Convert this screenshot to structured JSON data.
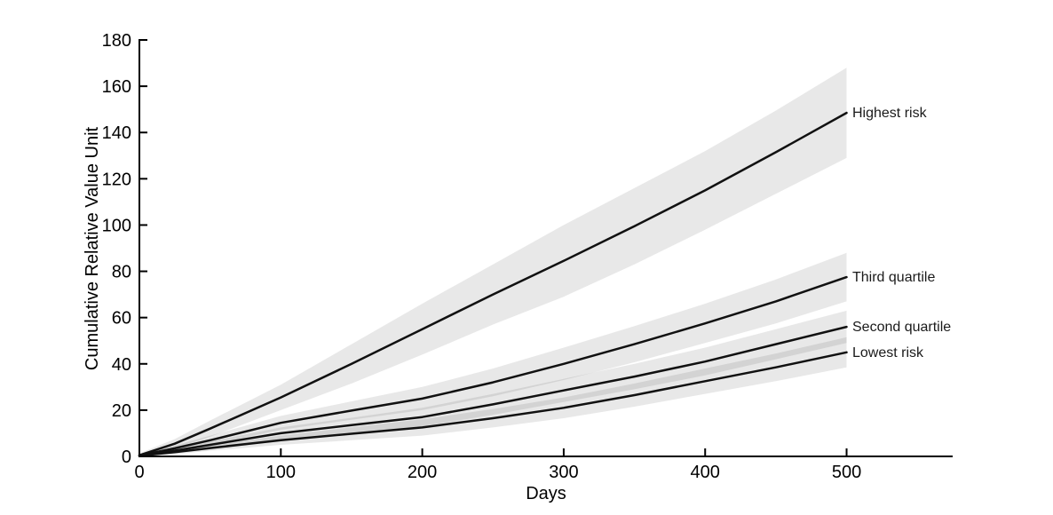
{
  "figure": {
    "background": "#ffffff",
    "axis_color": "#000000",
    "text_color": "#000000"
  },
  "chart_data": {
    "type": "line",
    "title": "",
    "xlabel": "Days",
    "ylabel": "Cumulative Relative Value Unit",
    "xlim": [
      0,
      575
    ],
    "ylim": [
      0,
      180
    ],
    "xticks": [
      0,
      100,
      200,
      300,
      400,
      500
    ],
    "yticks": [
      0,
      20,
      40,
      60,
      80,
      100,
      120,
      140,
      160,
      180
    ],
    "grid": false,
    "legend_position": "end-of-line-annotations",
    "line_color": "#111111",
    "band_color": "rgba(0,0,0,0.09)",
    "x": [
      0,
      25,
      50,
      100,
      150,
      200,
      250,
      300,
      350,
      400,
      450,
      500
    ],
    "series": [
      {
        "name": "highest-risk",
        "label": "Highest risk",
        "label_y": 148.5,
        "mean": [
          0.5,
          5.5,
          12,
          25.5,
          40,
          55,
          70,
          84.5,
          99.5,
          115,
          131.5,
          148.5
        ],
        "upper": [
          1.3,
          7.5,
          15.5,
          31,
          48.5,
          66,
          83,
          100,
          116,
          132,
          149.5,
          168
        ],
        "lower": [
          0,
          3.5,
          8.5,
          20,
          31.5,
          44,
          57,
          69,
          83,
          98,
          113.5,
          129
        ]
      },
      {
        "name": "third-quartile",
        "label": "Third quartile",
        "label_y": 77.5,
        "mean": [
          0.4,
          3.5,
          7,
          14.5,
          19.8,
          25,
          32,
          40,
          48.5,
          57.5,
          67,
          77.5
        ],
        "upper": [
          1,
          4.7,
          9,
          17.5,
          23.8,
          30,
          38,
          47,
          56.3,
          66,
          76.5,
          88
        ],
        "lower": [
          0,
          2.3,
          5,
          11.5,
          15.8,
          20,
          26,
          33,
          40.7,
          49,
          57.5,
          67
        ]
      },
      {
        "name": "second-quartile",
        "label": "Second quartile",
        "label_y": 56,
        "mean": [
          0.3,
          2.5,
          5,
          10,
          13.5,
          17,
          22.5,
          28.5,
          34.5,
          41,
          48.5,
          56
        ],
        "upper": [
          0.8,
          3.5,
          6.5,
          12.5,
          16.7,
          21,
          27,
          33.5,
          40,
          47,
          55,
          63
        ],
        "lower": [
          0,
          1.5,
          3.5,
          7.5,
          10.3,
          13,
          18,
          23.5,
          29,
          35,
          42,
          49
        ]
      },
      {
        "name": "lowest-risk",
        "label": "Lowest risk",
        "label_y": 45,
        "mean": [
          0.3,
          1.8,
          3.6,
          7,
          9.8,
          12.5,
          16.5,
          21,
          26.5,
          32.5,
          38.5,
          45
        ],
        "upper": [
          0.8,
          2.6,
          4.8,
          9,
          12.6,
          16,
          20.5,
          25.5,
          31.5,
          38,
          44.5,
          51.5
        ],
        "lower": [
          0,
          1,
          2.4,
          5,
          7,
          9,
          12.5,
          16.5,
          21.5,
          27,
          32.5,
          38.5
        ]
      }
    ]
  }
}
